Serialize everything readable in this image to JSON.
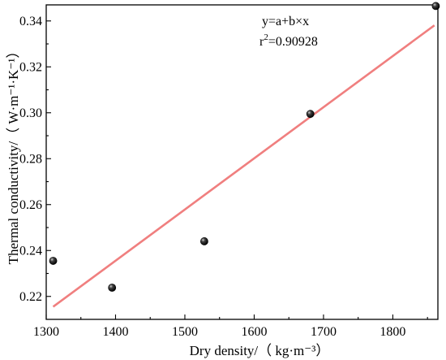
{
  "chart_data": {
    "type": "scatter",
    "xlabel": "Dry density/（ kg·m⁻³）",
    "ylabel": "Thermal conductivity/（ W·m⁻¹·K⁻¹）",
    "xlim": [
      1300,
      1865
    ],
    "ylim": [
      0.21,
      0.347
    ],
    "x_ticks": [
      1300,
      1400,
      1500,
      1600,
      1700,
      1800
    ],
    "y_ticks": [
      0.22,
      0.24,
      0.26,
      0.28,
      0.3,
      0.32,
      0.34
    ],
    "series": [
      {
        "type": "scatter",
        "points": [
          {
            "x": 1310,
            "y": 0.2355
          },
          {
            "x": 1395,
            "y": 0.2238
          },
          {
            "x": 1528,
            "y": 0.244
          },
          {
            "x": 1681,
            "y": 0.2995
          },
          {
            "x": 1862,
            "y": 0.3465
          }
        ],
        "marker_color": "#000000"
      },
      {
        "type": "line",
        "fit": "linear",
        "x": [
          1310,
          1860
        ],
        "y": [
          0.2155,
          0.3381
        ],
        "color": "#f07f7f"
      }
    ],
    "annotation": {
      "equation": "y=a+b×x",
      "r2_prefix": "r",
      "r2_sup": "2",
      "r2_value": "=0.90928"
    },
    "grid": false,
    "legend": "none"
  }
}
